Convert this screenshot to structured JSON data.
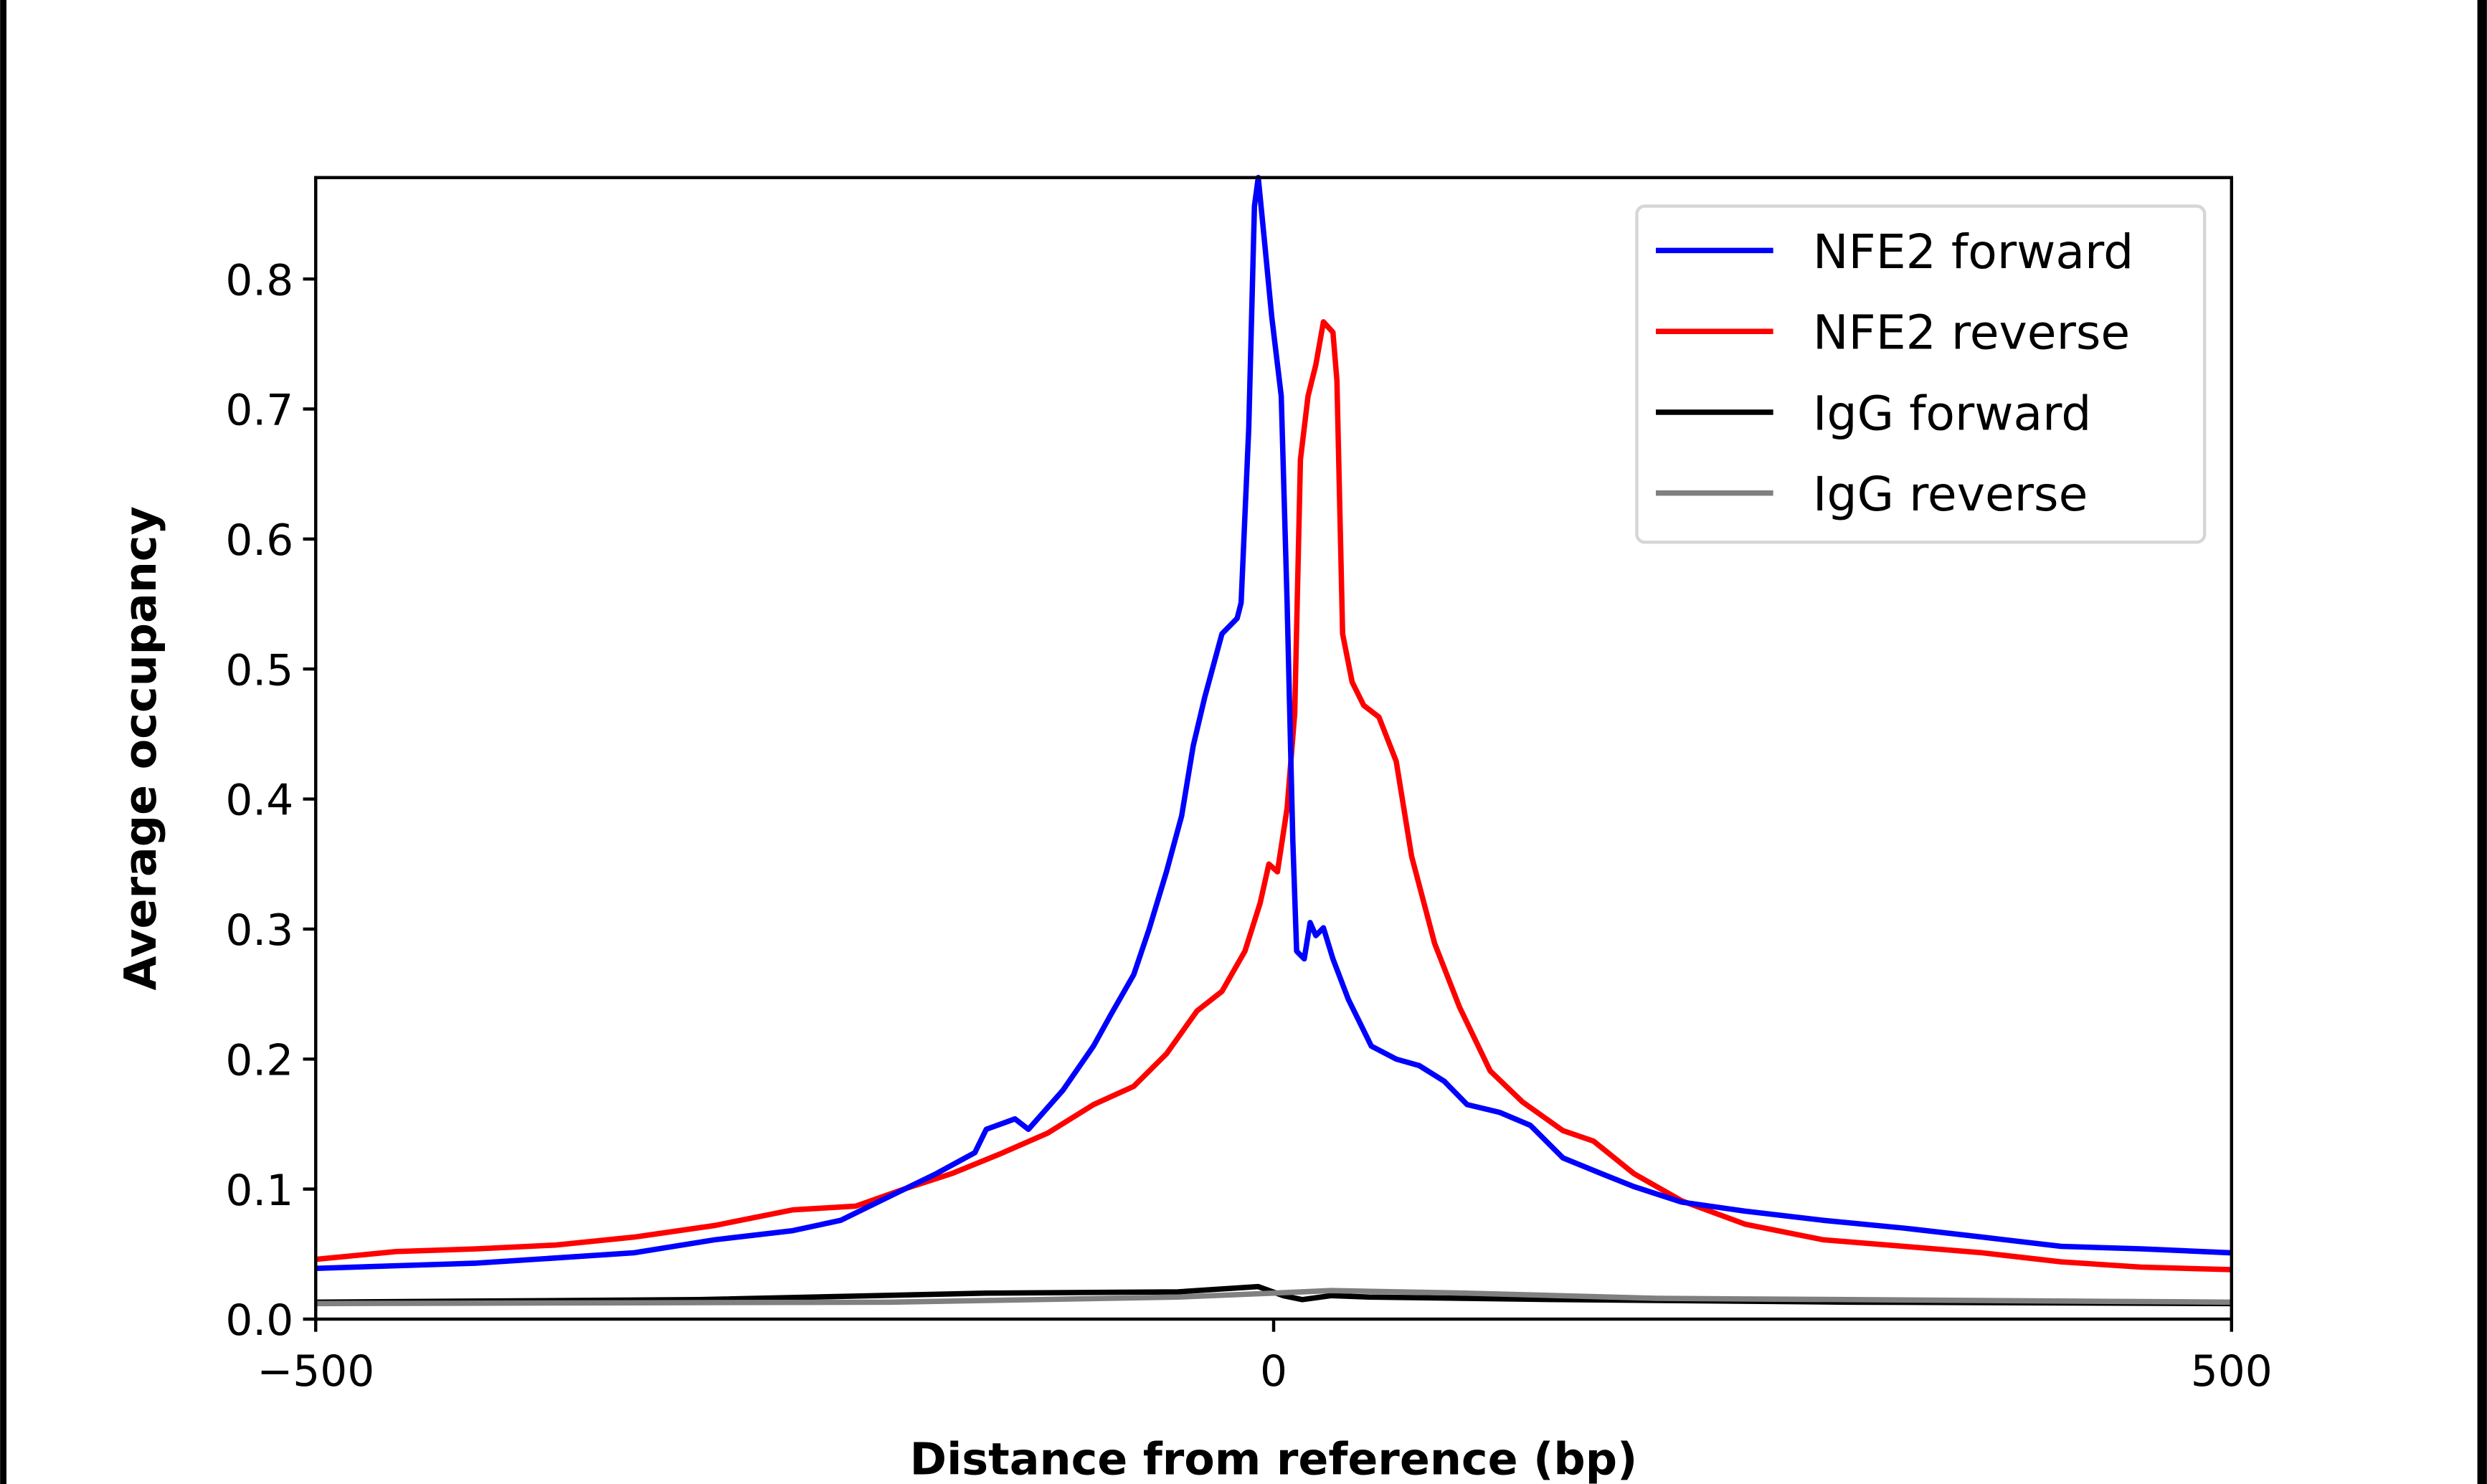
{
  "chart_data": {
    "type": "line",
    "title": "",
    "xlabel": "Distance from reference (bp)",
    "ylabel": "Average occupancy",
    "xlim": [
      -500,
      500
    ],
    "ylim": [
      0,
      0.878
    ],
    "xticks": [
      -500,
      0,
      500
    ],
    "xtick_labels": [
      "−500",
      "0",
      "500"
    ],
    "yticks": [
      0.0,
      0.1,
      0.2,
      0.3,
      0.4,
      0.5,
      0.6,
      0.7,
      0.8
    ],
    "ytick_labels": [
      "0.0",
      "0.1",
      "0.2",
      "0.3",
      "0.4",
      "0.5",
      "0.6",
      "0.7",
      "0.8"
    ],
    "grid": false,
    "legend_position": "top-right",
    "series": [
      {
        "name": "NFE2 forward",
        "color": "#0000ff",
        "x": [
          -500,
          -416,
          -334,
          -292,
          -251,
          -226,
          -201,
          -176,
          -156,
          -150,
          -135,
          -128,
          -110,
          -94,
          -85,
          -73,
          -65,
          -56,
          -48,
          -42,
          -36,
          -27,
          -19,
          -17,
          -13,
          -10,
          -8,
          -5,
          -1,
          4,
          7,
          10,
          12,
          16,
          19,
          22,
          26,
          31,
          39,
          51,
          64,
          76,
          89,
          101,
          118,
          134,
          151,
          171,
          188,
          213,
          246,
          287,
          329,
          370,
          411,
          453,
          500
        ],
        "y": [
          0.039,
          0.043,
          0.051,
          0.061,
          0.068,
          0.076,
          0.094,
          0.112,
          0.128,
          0.146,
          0.154,
          0.146,
          0.176,
          0.21,
          0.234,
          0.265,
          0.3,
          0.344,
          0.387,
          0.441,
          0.478,
          0.527,
          0.539,
          0.551,
          0.685,
          0.856,
          0.878,
          0.832,
          0.771,
          0.71,
          0.551,
          0.368,
          0.283,
          0.277,
          0.305,
          0.295,
          0.301,
          0.277,
          0.246,
          0.21,
          0.2,
          0.195,
          0.183,
          0.165,
          0.159,
          0.149,
          0.124,
          0.112,
          0.102,
          0.09,
          0.083,
          0.076,
          0.07,
          0.063,
          0.056,
          0.054,
          0.051
        ]
      },
      {
        "name": "NFE2 reverse",
        "color": "#ff0000",
        "x": [
          -500,
          -458,
          -416,
          -375,
          -334,
          -292,
          -251,
          -218,
          -193,
          -168,
          -143,
          -118,
          -94,
          -73,
          -56,
          -40,
          -27,
          -15,
          -7,
          -2.5,
          2,
          7,
          11,
          14,
          18,
          22,
          26,
          31,
          33,
          36,
          41,
          47,
          55,
          64,
          72,
          84,
          97,
          113,
          130,
          151,
          167,
          188,
          213,
          246,
          287,
          329,
          370,
          411,
          453,
          500
        ],
        "y": [
          0.046,
          0.052,
          0.054,
          0.057,
          0.063,
          0.072,
          0.084,
          0.087,
          0.1,
          0.112,
          0.127,
          0.143,
          0.165,
          0.179,
          0.204,
          0.237,
          0.252,
          0.283,
          0.32,
          0.35,
          0.344,
          0.393,
          0.466,
          0.661,
          0.71,
          0.734,
          0.767,
          0.759,
          0.722,
          0.527,
          0.49,
          0.472,
          0.463,
          0.429,
          0.356,
          0.289,
          0.24,
          0.191,
          0.167,
          0.145,
          0.137,
          0.112,
          0.091,
          0.073,
          0.061,
          0.056,
          0.051,
          0.044,
          0.04,
          0.038
        ]
      },
      {
        "name": "IgG forward",
        "color": "#000000",
        "x": [
          -500,
          -300,
          -150,
          -50,
          -8,
          5,
          15,
          30,
          50,
          150,
          300,
          500
        ],
        "y": [
          0.013,
          0.015,
          0.02,
          0.021,
          0.025,
          0.018,
          0.015,
          0.018,
          0.017,
          0.015,
          0.013,
          0.012
        ]
      },
      {
        "name": "IgG reverse",
        "color": "#808080",
        "x": [
          -500,
          -200,
          -50,
          0,
          30,
          100,
          200,
          300,
          500
        ],
        "y": [
          0.012,
          0.013,
          0.017,
          0.02,
          0.022,
          0.02,
          0.016,
          0.015,
          0.013
        ]
      }
    ]
  }
}
